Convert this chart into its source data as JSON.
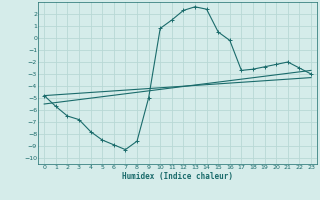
{
  "title": "",
  "xlabel": "Humidex (Indice chaleur)",
  "ylabel": "",
  "background_color": "#d5ecea",
  "grid_color": "#b8d8d5",
  "line_color": "#1a6b6b",
  "xlim": [
    -0.5,
    23.5
  ],
  "ylim": [
    -10.5,
    3.0
  ],
  "yticks": [
    -10,
    -9,
    -8,
    -7,
    -6,
    -5,
    -4,
    -3,
    -2,
    -1,
    0,
    1,
    2
  ],
  "xticks": [
    0,
    1,
    2,
    3,
    4,
    5,
    6,
    7,
    8,
    9,
    10,
    11,
    12,
    13,
    14,
    15,
    16,
    17,
    18,
    19,
    20,
    21,
    22,
    23
  ],
  "curve1_x": [
    0,
    1,
    2,
    3,
    4,
    5,
    6,
    7,
    8,
    9,
    10,
    11,
    12,
    13,
    14,
    15,
    16,
    17,
    18,
    19,
    20,
    21,
    22,
    23
  ],
  "curve1_y": [
    -4.8,
    -5.7,
    -6.5,
    -6.8,
    -7.8,
    -8.5,
    -8.9,
    -9.3,
    -8.6,
    -5.0,
    0.8,
    1.5,
    2.3,
    2.6,
    2.4,
    0.5,
    -0.2,
    -2.7,
    -2.6,
    -2.4,
    -2.2,
    -2.0,
    -2.5,
    -3.0
  ],
  "line1_x": [
    0,
    23
  ],
  "line1_y": [
    -4.8,
    -3.3
  ],
  "line2_x": [
    0,
    23
  ],
  "line2_y": [
    -5.5,
    -2.7
  ]
}
